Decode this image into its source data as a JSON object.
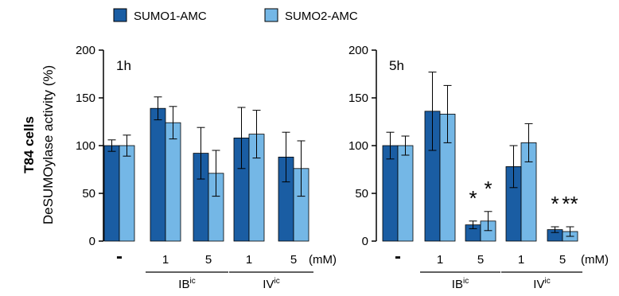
{
  "colors": {
    "sumo1": "#1a5da3",
    "sumo2": "#74b7e6",
    "axis": "#000000"
  },
  "ylabel_cells": "T84 cells",
  "ylabel": "DeSUMOylase activity (%)",
  "chart_data": [
    {
      "type": "bar",
      "panel_label": "1h",
      "categories": [
        "-",
        "1",
        "5",
        "1",
        "5"
      ],
      "unit_label": "(mM)",
      "groups": [
        {
          "label": "IB",
          "superscript": "ic",
          "categories": [
            1,
            2
          ]
        },
        {
          "label": "IV",
          "superscript": "ic",
          "categories": [
            3,
            4
          ]
        }
      ],
      "series": [
        {
          "name": "SUMO1-AMC",
          "values": [
            100,
            139,
            92,
            108,
            88
          ],
          "errors": [
            6,
            12,
            27,
            32,
            26
          ]
        },
        {
          "name": "SUMO2-AMC",
          "values": [
            100,
            124,
            71,
            112,
            76
          ],
          "errors": [
            11,
            17,
            24,
            25,
            29
          ]
        }
      ],
      "significance": [],
      "ylim": [
        0,
        200
      ],
      "yticks": [
        0,
        50,
        100,
        150,
        200
      ]
    },
    {
      "type": "bar",
      "panel_label": "5h",
      "categories": [
        "-",
        "1",
        "5",
        "1",
        "5"
      ],
      "unit_label": "(mM)",
      "groups": [
        {
          "label": "IB",
          "superscript": "ic",
          "categories": [
            1,
            2
          ]
        },
        {
          "label": "IV",
          "superscript": "ic",
          "categories": [
            3,
            4
          ]
        }
      ],
      "series": [
        {
          "name": "SUMO1-AMC",
          "values": [
            100,
            136,
            17,
            78,
            12
          ],
          "errors": [
            14,
            41,
            4,
            22,
            3
          ]
        },
        {
          "name": "SUMO2-AMC",
          "values": [
            100,
            133,
            21,
            103,
            10
          ],
          "errors": [
            10,
            30,
            10,
            20,
            5
          ]
        }
      ],
      "significance": [
        {
          "category": 2,
          "series": 0,
          "text": "*"
        },
        {
          "category": 2,
          "series": 1,
          "text": "*"
        },
        {
          "category": 4,
          "series": 0,
          "text": "*"
        },
        {
          "category": 4,
          "series": 1,
          "text": "**"
        }
      ],
      "ylim": [
        0,
        200
      ],
      "yticks": [
        0,
        50,
        100,
        150,
        200
      ]
    }
  ]
}
